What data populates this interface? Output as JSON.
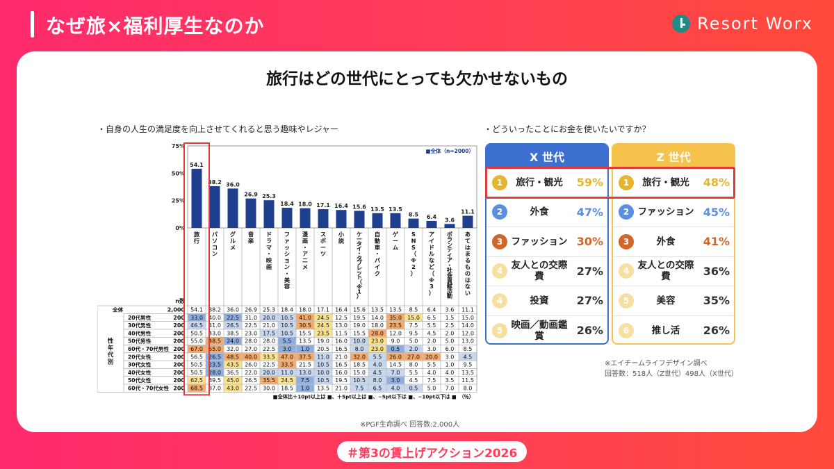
{
  "header": {
    "title": "なぜ旅×福利厚生なのか",
    "logo_text": "Resort Worx"
  },
  "main_heading": "旅行はどの世代にとっても欠かせないもの",
  "left": {
    "caption": "・自身の人生の満足度を向上させてくれると思う趣味やレジャー",
    "note": "※PGF生命調べ 回答数:2,000人"
  },
  "chart_data": {
    "type": "bar",
    "legend": "■全体（n=2000）",
    "y_ticks": [
      "75%",
      "50%",
      "25%",
      "0%"
    ],
    "ylim": [
      0,
      75
    ],
    "categories": [
      "旅行",
      "パソコン",
      "グルメ",
      "音楽",
      "ドラマ・映画",
      "ファッション・美容",
      "漫画・アニメ",
      "スポーツ",
      "小説",
      "ケータイ・タブレット（※1）",
      "自動車・バイク",
      "ゲーム",
      "SNS（※2）",
      "アイドルなど（※3）",
      "ボランティア・社会貢献活動",
      "あてはまるものはない"
    ],
    "values": [
      54.1,
      38.2,
      36.0,
      26.9,
      25.3,
      18.4,
      18.0,
      17.1,
      16.4,
      15.6,
      13.5,
      13.5,
      8.5,
      6.4,
      3.6,
      11.1
    ],
    "table": {
      "n_header": "n数",
      "group_label": "性年代別",
      "rows": [
        {
          "label": "全体",
          "n": "2,000",
          "cells": [
            "54.1",
            "38.2",
            "36.0",
            "26.9",
            "25.3",
            "18.4",
            "18.0",
            "17.1",
            "16.4",
            "15.6",
            "13.5",
            "13.5",
            "8.5",
            "6.4",
            "3.6",
            "11.1"
          ]
        },
        {
          "label": "20代男性",
          "n": "200",
          "cells": [
            "33.0",
            "40.0",
            "22.5",
            "31.0",
            "20.0",
            "10.5",
            "41.0",
            "24.5",
            "12.5",
            "19.5",
            "14.0",
            "35.0",
            "15.0",
            "6.5",
            "1.5",
            "15.0"
          ]
        },
        {
          "label": "30代男性",
          "n": "200",
          "cells": [
            "46.5",
            "41.0",
            "26.5",
            "22.5",
            "21.0",
            "10.5",
            "30.5",
            "24.5",
            "13.0",
            "19.0",
            "18.0",
            "23.5",
            "7.5",
            "5.5",
            "2.5",
            "14.0"
          ]
        },
        {
          "label": "40代男性",
          "n": "200",
          "cells": [
            "50.5",
            "43.0",
            "38.5",
            "23.0",
            "17.5",
            "10.5",
            "15.5",
            "23.5",
            "11.5",
            "15.5",
            "28.0",
            "12.0",
            "9.5",
            "4.5",
            "2.0",
            "12.0"
          ]
        },
        {
          "label": "50代男性",
          "n": "200",
          "cells": [
            "55.0",
            "48.5",
            "24.0",
            "28.0",
            "28.0",
            "5.5",
            "13.5",
            "19.0",
            "16.0",
            "10.0",
            "23.0",
            "9.0",
            "5.0",
            "2.0",
            "5.0",
            "13.0"
          ]
        },
        {
          "label": "60代・70代男性",
          "n": "200",
          "cells": [
            "67.0",
            "55.0",
            "32.0",
            "27.0",
            "22.5",
            "3.0",
            "1.0",
            "20.5",
            "16.5",
            "8.0",
            "23.0",
            "0.5",
            "2.0",
            "3.0",
            "6.0",
            "8.5"
          ]
        },
        {
          "label": "20代女性",
          "n": "200",
          "cells": [
            "56.5",
            "26.5",
            "48.5",
            "40.0",
            "33.5",
            "47.0",
            "37.5",
            "11.0",
            "21.0",
            "32.0",
            "5.5",
            "26.0",
            "27.0",
            "20.0",
            "3.0",
            "4.5"
          ]
        },
        {
          "label": "30代女性",
          "n": "200",
          "cells": [
            "50.5",
            "23.5",
            "43.5",
            "26.0",
            "22.5",
            "33.5",
            "21.5",
            "10.5",
            "16.5",
            "18.5",
            "4.0",
            "14.5",
            "8.0",
            "5.5",
            "1.0",
            "9.5"
          ]
        },
        {
          "label": "40代女性",
          "n": "200",
          "cells": [
            "50.5",
            "28.0",
            "36.5",
            "22.0",
            "20.0",
            "11.0",
            "13.0",
            "10.0",
            "16.0",
            "15.0",
            "4.5",
            "7.0",
            "5.5",
            "4.0",
            "4.0",
            "13.5"
          ]
        },
        {
          "label": "50代女性",
          "n": "200",
          "cells": [
            "62.5",
            "39.5",
            "45.0",
            "26.5",
            "35.5",
            "24.5",
            "7.5",
            "10.5",
            "19.5",
            "10.5",
            "8.0",
            "3.0",
            "4.5",
            "7.5",
            "3.5",
            "11.5"
          ]
        },
        {
          "label": "60代・70代女性",
          "n": "200",
          "cells": [
            "68.5",
            "37.0",
            "43.0",
            "22.5",
            "30.0",
            "18.5",
            "1.0",
            "13.5",
            "21.0",
            "7.5",
            "6.5",
            "4.0",
            "0.5",
            "5.0",
            "7.0",
            "8.0"
          ]
        }
      ],
      "legend_text": "■全体比＋10pt以上は ■、＋5pt以上は ■、−5pt以下は ■、−10pt以下は ■　（％）"
    },
    "colors": {
      "bar": "#1e3f8e",
      "plus10": "#f4a96b",
      "plus5": "#fbe38e",
      "minus5": "#c6d7ef",
      "minus10": "#8eaee0",
      "highlight": "#e03b3b"
    }
  },
  "right": {
    "caption": "・どういったことにお金を使いたいですか？",
    "x_generation": {
      "title": "X 世代",
      "items": [
        {
          "rank": "1",
          "label": "旅行・観光",
          "value": "59%"
        },
        {
          "rank": "2",
          "label": "外食",
          "value": "47%"
        },
        {
          "rank": "3",
          "label": "ファッション",
          "value": "30%"
        },
        {
          "rank": "4",
          "label": "友人との交際費",
          "value": "27%"
        },
        {
          "rank": "4",
          "label": "投資",
          "value": "27%"
        },
        {
          "rank": "5",
          "label": "映画／動画鑑賞",
          "value": "26%"
        }
      ]
    },
    "z_generation": {
      "title": "Z 世代",
      "items": [
        {
          "rank": "1",
          "label": "旅行・観光",
          "value": "48%"
        },
        {
          "rank": "2",
          "label": "ファッション",
          "value": "45%"
        },
        {
          "rank": "3",
          "label": "外食",
          "value": "41%"
        },
        {
          "rank": "4",
          "label": "友人との交際費",
          "value": "36%"
        },
        {
          "rank": "5",
          "label": "美容",
          "value": "35%"
        },
        {
          "rank": "6",
          "label": "推し活",
          "value": "26%"
        }
      ]
    },
    "note_1": "※エイチームライフデザイン調べ",
    "note_2": "回答数：518人（Z世代）498人（X世代）",
    "colors": {
      "x_head": "#3d6fd0",
      "z_head": "#f5c24c",
      "gold": "#e6b52e",
      "blue": "#5b8fe0",
      "bronze": "#d0662a",
      "pale": "#f6e0a0",
      "val_gold": "#e6b52e",
      "val_blue": "#5b8fe0",
      "val_bronze": "#d0662a",
      "val_plain": "#333333"
    }
  },
  "footer": {
    "hashtag": "＃第3の賃上げアクション2026"
  }
}
